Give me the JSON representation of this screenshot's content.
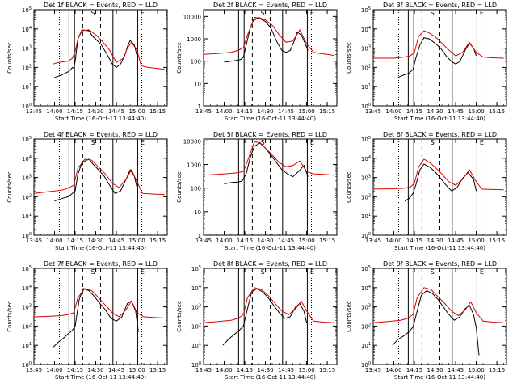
{
  "colors": {
    "events": "#000000",
    "lld": "#dd0000",
    "background": "#ffffff",
    "frame": "#000000"
  },
  "x_ticks": [
    "13:45",
    "14:00",
    "14:15",
    "14:30",
    "14:45",
    "15:00",
    "15:15"
  ],
  "markers": {
    "solid": [
      "14:10:30",
      "14:14:30",
      "14:42:30",
      "15:00:30"
    ],
    "dashed": [
      "14:20:30",
      "14:33:30"
    ],
    "dotted": [
      "14:03:30",
      "15:03:30"
    ]
  },
  "marker_letters": [
    {
      "label": "S",
      "time": "14:28"
    },
    {
      "label": "E",
      "time": "15:04"
    }
  ],
  "chart_data": [
    {
      "type": "line",
      "title": "Det 1f BLACK = Events, RED = LLD",
      "xlabel": "Start Time (16-Oct-11 13:44:40)",
      "ylabel": "Counts/sec",
      "xlim": [
        "13:45",
        "15:22"
      ],
      "ylim": [
        1,
        100000
      ],
      "yscale": "log",
      "ytick_labels": [
        "10^0",
        "10^1",
        "10^2",
        "10^3",
        "10^4",
        "10^5"
      ],
      "series": [
        {
          "name": "BLACK",
          "x": [
            "14:00",
            "14:05",
            "14:10",
            "14:12",
            "14:13",
            "14:14",
            "14:15",
            "14:17",
            "14:20",
            "14:25",
            "14:28",
            "14:31",
            "14:34",
            "14:38",
            "14:42",
            "14:45",
            "14:48",
            "14:51",
            "14:53",
            "14:55",
            "14:58",
            "15:00"
          ],
          "y": [
            30,
            40,
            60,
            80,
            100,
            90,
            200,
            3000,
            9000,
            8000,
            4000,
            2500,
            1500,
            500,
            150,
            100,
            150,
            400,
            1200,
            2500,
            1500,
            400
          ]
        },
        {
          "name": "RED",
          "x": [
            "13:59",
            "14:03",
            "14:07",
            "14:10",
            "14:13",
            "14:15",
            "14:17",
            "14:20",
            "14:25",
            "14:30",
            "14:35",
            "14:40",
            "14:45",
            "14:50",
            "14:53",
            "14:56",
            "15:00",
            "15:03",
            "15:08",
            "15:14",
            "15:20"
          ],
          "y": [
            150,
            180,
            200,
            210,
            300,
            700,
            3000,
            8000,
            9000,
            5000,
            2200,
            800,
            180,
            300,
            1000,
            2000,
            800,
            120,
            100,
            90,
            80
          ]
        }
      ]
    },
    {
      "type": "line",
      "title": "Det 2f BLACK = Events, RED = LLD",
      "xlabel": "Start Time (16-Oct-11 13:44:40)",
      "ylabel": "Counts/sec",
      "xlim": [
        "13:45",
        "15:22"
      ],
      "ylim": [
        1,
        20000
      ],
      "yscale": "log",
      "ytick_labels": [
        "1",
        "10",
        "100",
        "1000",
        "10000"
      ],
      "series": [
        {
          "name": "BLACK",
          "x": [
            "14:00",
            "14:05",
            "14:10",
            "14:12",
            "14:14",
            "14:16",
            "14:19",
            "14:22",
            "14:26",
            "14:30",
            "14:34",
            "14:38",
            "14:42",
            "14:45",
            "14:48",
            "14:51",
            "14:53",
            "14:56",
            "14:59",
            "15:01"
          ],
          "y": [
            90,
            100,
            110,
            120,
            150,
            500,
            3000,
            9000,
            8000,
            6000,
            3000,
            800,
            300,
            250,
            300,
            800,
            2000,
            1500,
            600,
            300
          ]
        },
        {
          "name": "RED",
          "x": [
            "13:45",
            "13:55",
            "14:05",
            "14:10",
            "14:14",
            "14:17",
            "14:21",
            "14:25",
            "14:30",
            "14:35",
            "14:40",
            "14:45",
            "14:50",
            "14:55",
            "15:00",
            "15:05",
            "15:10",
            "15:15",
            "15:20"
          ],
          "y": [
            200,
            220,
            250,
            300,
            400,
            1500,
            6000,
            9000,
            7000,
            4000,
            1500,
            700,
            800,
            2500,
            600,
            250,
            220,
            200,
            180
          ]
        }
      ]
    },
    {
      "type": "line",
      "title": "Det 3f BLACK = Events, RED = LLD",
      "xlabel": "Start Time (16-Oct-11 13:44:40)",
      "ylabel": "Counts/sec",
      "xlim": [
        "13:45",
        "15:22"
      ],
      "ylim": [
        1,
        100000
      ],
      "yscale": "log",
      "ytick_labels": [
        "10^0",
        "10^1",
        "10^2",
        "10^3",
        "10^4",
        "10^5"
      ],
      "series": [
        {
          "name": "BLACK",
          "x": [
            "14:03",
            "14:07",
            "14:11",
            "14:14",
            "14:16",
            "14:19",
            "14:22",
            "14:26",
            "14:30",
            "14:34",
            "14:38",
            "14:42",
            "14:45",
            "14:48",
            "14:52",
            "14:55",
            "14:58",
            "15:00"
          ],
          "y": [
            30,
            40,
            50,
            80,
            300,
            1500,
            3500,
            3000,
            1800,
            1000,
            400,
            200,
            150,
            200,
            800,
            1800,
            1000,
            400
          ]
        },
        {
          "name": "RED",
          "x": [
            "13:45",
            "14:00",
            "14:08",
            "14:12",
            "14:15",
            "14:18",
            "14:22",
            "14:26",
            "14:30",
            "14:35",
            "14:40",
            "14:45",
            "14:50",
            "14:55",
            "15:00",
            "15:05",
            "15:10",
            "15:20"
          ],
          "y": [
            300,
            300,
            350,
            400,
            600,
            4000,
            8000,
            6000,
            4000,
            1800,
            800,
            400,
            600,
            2000,
            600,
            350,
            320,
            300
          ]
        }
      ]
    },
    {
      "type": "line",
      "title": "Det 4f BLACK = Events, RED = LLD",
      "xlabel": "Start Time (16-Oct-11 13:44:40)",
      "ylabel": "Counts/sec",
      "xlim": [
        "13:45",
        "15:22"
      ],
      "ylim": [
        1,
        100000
      ],
      "yscale": "log",
      "ytick_labels": [
        "10^0",
        "10^1",
        "10^2",
        "10^3",
        "10^4",
        "10^5"
      ],
      "series": [
        {
          "name": "BLACK",
          "x": [
            "14:00",
            "14:05",
            "14:10",
            "14:13",
            "14:15",
            "14:17",
            "14:20",
            "14:25",
            "14:28",
            "14:32",
            "14:36",
            "14:40",
            "14:44",
            "14:48",
            "14:52",
            "14:55",
            "14:58",
            "15:00"
          ],
          "y": [
            60,
            80,
            100,
            150,
            200,
            1500,
            6000,
            9000,
            5000,
            2500,
            1200,
            400,
            150,
            200,
            800,
            2500,
            1200,
            300
          ]
        },
        {
          "name": "RED",
          "x": [
            "13:45",
            "13:55",
            "14:05",
            "14:10",
            "14:14",
            "14:17",
            "14:22",
            "14:27",
            "14:32",
            "14:37",
            "14:42",
            "14:47",
            "14:52",
            "14:56",
            "15:00",
            "15:04",
            "15:10",
            "15:20"
          ],
          "y": [
            150,
            180,
            220,
            280,
            400,
            3000,
            9000,
            8000,
            3500,
            1500,
            500,
            300,
            800,
            2500,
            600,
            150,
            140,
            130
          ]
        }
      ]
    },
    {
      "type": "line",
      "title": "Det 5f BLACK = Events, RED = LLD",
      "xlabel": "Start Time (16-Oct-11 13:44:40)",
      "ylabel": "Counts/sec",
      "xlim": [
        "13:45",
        "15:22"
      ],
      "ylim": [
        1,
        12000
      ],
      "yscale": "log",
      "ytick_labels": [
        "1",
        "10",
        "100",
        "1000",
        "10000"
      ],
      "series": [
        {
          "name": "BLACK",
          "x": [
            "14:00",
            "14:05",
            "14:10",
            "14:13",
            "14:16",
            "14:19",
            "14:22",
            "14:26",
            "14:30",
            "14:34",
            "14:38",
            "14:42",
            "14:46",
            "14:50",
            "14:54",
            "14:58",
            "15:01"
          ],
          "y": [
            150,
            170,
            180,
            200,
            400,
            2000,
            6000,
            8000,
            5000,
            2500,
            1200,
            600,
            400,
            300,
            500,
            900,
            300
          ]
        },
        {
          "name": "RED",
          "x": [
            "13:45",
            "13:55",
            "14:05",
            "14:10",
            "14:14",
            "14:18",
            "14:22",
            "14:26",
            "14:30",
            "14:35",
            "14:40",
            "14:45",
            "14:50",
            "14:55",
            "15:00",
            "15:05",
            "15:12",
            "15:20"
          ],
          "y": [
            350,
            380,
            420,
            450,
            500,
            2000,
            9000,
            8500,
            5000,
            2500,
            1200,
            800,
            900,
            1400,
            500,
            400,
            380,
            350
          ]
        }
      ]
    },
    {
      "type": "line",
      "title": "Det 6f BLACK = Events, RED = LLD",
      "xlabel": "Start Time (16-Oct-11 13:44:40)",
      "ylabel": "Counts/sec",
      "xlim": [
        "13:45",
        "15:22"
      ],
      "ylim": [
        1,
        100000
      ],
      "yscale": "log",
      "ytick_labels": [
        "10^0",
        "10^1",
        "10^2",
        "10^3",
        "10^4",
        "10^5"
      ],
      "series": [
        {
          "name": "BLACK",
          "x": [
            "14:08",
            "14:11",
            "14:14",
            "14:16",
            "14:19",
            "14:22",
            "14:26",
            "14:30",
            "14:34",
            "14:38",
            "14:42",
            "14:46",
            "14:50",
            "14:54",
            "14:58",
            "15:00"
          ],
          "y": [
            60,
            80,
            150,
            400,
            2500,
            5000,
            3500,
            2000,
            900,
            400,
            200,
            300,
            900,
            1800,
            800,
            200
          ]
        },
        {
          "name": "RED",
          "x": [
            "13:45",
            "14:00",
            "14:08",
            "14:12",
            "14:15",
            "14:18",
            "14:22",
            "14:26",
            "14:30",
            "14:35",
            "14:40",
            "14:45",
            "14:50",
            "14:55",
            "15:00",
            "15:04",
            "15:12",
            "15:20"
          ],
          "y": [
            250,
            260,
            280,
            320,
            500,
            3500,
            9000,
            6000,
            3500,
            1500,
            600,
            400,
            800,
            2500,
            600,
            250,
            240,
            230
          ]
        }
      ]
    },
    {
      "type": "line",
      "title": "Det 7f BLACK = Events, RED = LLD",
      "xlabel": "Start Time (16-Oct-11 13:44:40)",
      "ylabel": "Counts/sec",
      "xlim": [
        "13:45",
        "15:22"
      ],
      "ylim": [
        1,
        100000
      ],
      "yscale": "log",
      "ytick_labels": [
        "10^0",
        "10^1",
        "10^2",
        "10^3",
        "10^4",
        "10^5"
      ],
      "series": [
        {
          "name": "BLACK",
          "x": [
            "13:59",
            "14:03",
            "14:07",
            "14:10",
            "14:13",
            "14:15",
            "14:18",
            "14:21",
            "14:25",
            "14:29",
            "14:33",
            "14:37",
            "14:41",
            "14:45",
            "14:49",
            "14:53",
            "14:56",
            "14:59",
            "15:01"
          ],
          "y": [
            8,
            15,
            25,
            40,
            60,
            100,
            2500,
            9000,
            7000,
            3500,
            1500,
            700,
            250,
            180,
            300,
            1500,
            2000,
            600,
            50
          ]
        },
        {
          "name": "RED",
          "x": [
            "13:45",
            "13:55",
            "14:05",
            "14:10",
            "14:14",
            "14:17",
            "14:22",
            "14:27",
            "14:32",
            "14:37",
            "14:42",
            "14:47",
            "14:52",
            "14:56",
            "15:00",
            "15:05",
            "15:12",
            "15:20"
          ],
          "y": [
            300,
            320,
            350,
            400,
            500,
            3000,
            9000,
            7000,
            3000,
            1200,
            500,
            300,
            700,
            2000,
            500,
            300,
            280,
            260
          ]
        }
      ]
    },
    {
      "type": "line",
      "title": "Det 8f BLACK = Events, RED = LLD",
      "xlabel": "Start Time (16-Oct-11 13:44:40)",
      "ylabel": "Counts/sec",
      "xlim": [
        "13:45",
        "15:22"
      ],
      "ylim": [
        1,
        100000
      ],
      "yscale": "log",
      "ytick_labels": [
        "10^0",
        "10^1",
        "10^2",
        "10^3",
        "10^4",
        "10^5"
      ],
      "series": [
        {
          "name": "BLACK",
          "x": [
            "13:59",
            "14:03",
            "14:07",
            "14:11",
            "14:14",
            "14:17",
            "14:20",
            "14:24",
            "14:28",
            "14:32",
            "14:36",
            "14:40",
            "14:44",
            "14:48",
            "14:52",
            "14:55",
            "14:58",
            "15:00"
          ],
          "y": [
            10,
            20,
            35,
            60,
            100,
            800,
            6000,
            9000,
            6000,
            3000,
            1200,
            500,
            250,
            300,
            1000,
            1500,
            600,
            150
          ]
        },
        {
          "name": "RED",
          "x": [
            "13:45",
            "13:55",
            "14:05",
            "14:10",
            "14:14",
            "14:17",
            "14:22",
            "14:27",
            "14:32",
            "14:37",
            "14:42",
            "14:47",
            "14:52",
            "14:56",
            "15:00",
            "15:05",
            "15:12",
            "15:20"
          ],
          "y": [
            150,
            170,
            200,
            250,
            400,
            3000,
            10000,
            8000,
            4000,
            1500,
            600,
            400,
            800,
            2000,
            600,
            180,
            160,
            150
          ]
        }
      ]
    },
    {
      "type": "line",
      "title": "Det 9f BLACK = Events, RED = LLD",
      "xlabel": "Start Time (16-Oct-11 13:44:40)",
      "ylabel": "Counts/sec",
      "xlim": [
        "13:45",
        "15:22"
      ],
      "ylim": [
        1,
        100000
      ],
      "yscale": "log",
      "ytick_labels": [
        "10^0",
        "10^1",
        "10^2",
        "10^3",
        "10^4",
        "10^5"
      ],
      "series": [
        {
          "name": "BLACK",
          "x": [
            "13:59",
            "14:03",
            "14:07",
            "14:11",
            "14:14",
            "14:17",
            "14:20",
            "14:24",
            "14:28",
            "14:32",
            "14:36",
            "14:40",
            "14:44",
            "14:48",
            "14:52",
            "14:55",
            "14:58",
            "15:00",
            "15:02"
          ],
          "y": [
            10,
            20,
            30,
            50,
            90,
            600,
            4000,
            7000,
            5000,
            2500,
            1000,
            400,
            200,
            300,
            800,
            1200,
            400,
            80,
            3
          ]
        },
        {
          "name": "RED",
          "x": [
            "13:45",
            "13:55",
            "14:05",
            "14:10",
            "14:14",
            "14:17",
            "14:22",
            "14:27",
            "14:32",
            "14:37",
            "14:42",
            "14:47",
            "14:52",
            "14:56",
            "15:00",
            "15:05",
            "15:12",
            "15:20"
          ],
          "y": [
            150,
            170,
            200,
            250,
            400,
            3000,
            10000,
            8000,
            3500,
            1500,
            600,
            350,
            700,
            1800,
            500,
            180,
            160,
            150
          ]
        }
      ]
    }
  ]
}
